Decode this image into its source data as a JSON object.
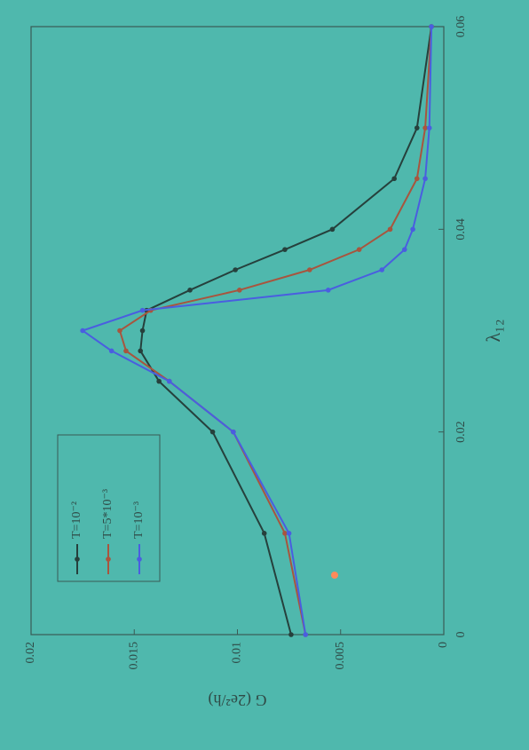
{
  "chart_data": {
    "type": "line",
    "x_label": "λ₁₂",
    "y_label": "G (2e²/h)",
    "x": [
      0,
      0.01,
      0.02,
      0.025,
      0.028,
      0.03,
      0.032,
      0.034,
      0.036,
      0.038,
      0.04,
      0.045,
      0.05,
      0.06
    ],
    "series": [
      {
        "name": "T=10⁻²",
        "color": "#26403c",
        "values": [
          0.0074,
          0.0087,
          0.0112,
          0.0138,
          0.0147,
          0.0146,
          0.0144,
          0.0123,
          0.0101,
          0.0077,
          0.0054,
          0.0024,
          0.0013,
          0.0006
        ]
      },
      {
        "name": "T=5*10⁻³",
        "color": "#a8553e",
        "values": [
          0.0067,
          0.0077,
          0.0102,
          0.0133,
          0.0154,
          0.0157,
          0.0142,
          0.0099,
          0.0065,
          0.0041,
          0.0026,
          0.0013,
          0.0009,
          0.0006
        ]
      },
      {
        "name": "T=10⁻³",
        "color": "#4a5ee0",
        "values": [
          0.0067,
          0.0075,
          0.0102,
          0.0133,
          0.0161,
          0.0175,
          0.0146,
          0.0056,
          0.003,
          0.0019,
          0.0015,
          0.0009,
          0.0007,
          0.0006
        ]
      }
    ],
    "xlim": [
      0,
      0.06
    ],
    "xticks": [
      0,
      0.02,
      0.04,
      0.06
    ],
    "ylim": [
      0,
      0.02
    ],
    "yticks": [
      0,
      0.005,
      0.01,
      0.015,
      0.02
    ],
    "legend": "upper left"
  }
}
